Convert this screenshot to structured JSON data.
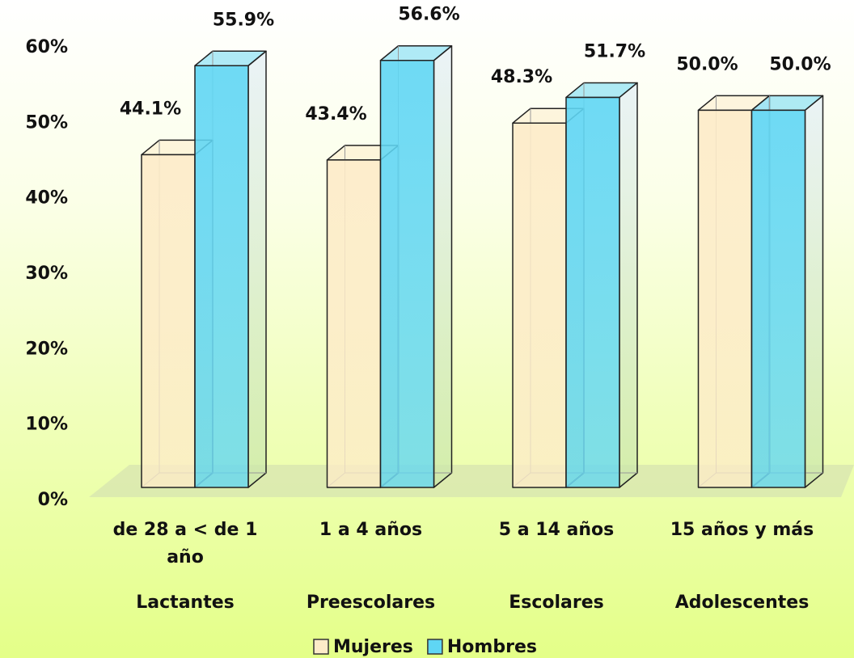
{
  "chart_data": {
    "type": "bar3d",
    "categories": [
      "de 28 a < de 1 año",
      "1 a 4 años",
      "5 a 14 años",
      "15 años y más"
    ],
    "groups": [
      "Lactantes",
      "Preescolares",
      "Escolares",
      "Adolescentes"
    ],
    "series": [
      {
        "name": "Mujeres",
        "color": "#fdebc8",
        "values": [
          44.1,
          43.4,
          48.3,
          50.0
        ],
        "value_labels": [
          "44.1%",
          "43.4%",
          "48.3%",
          "50.0%"
        ]
      },
      {
        "name": "Hombres",
        "color": "#5fd6f4",
        "values": [
          55.9,
          56.6,
          51.7,
          50.0
        ],
        "value_labels": [
          "55.9%",
          "56.6%",
          "51.7%",
          "50.0%"
        ]
      }
    ],
    "ylim": [
      0,
      60
    ],
    "yticks": [
      {
        "value": 0,
        "label": "0%"
      },
      {
        "value": 10,
        "label": "10%"
      },
      {
        "value": 20,
        "label": "20%"
      },
      {
        "value": 30,
        "label": "30%"
      },
      {
        "value": 40,
        "label": "40%"
      },
      {
        "value": 50,
        "label": "50%"
      },
      {
        "value": 60,
        "label": "60%"
      }
    ],
    "legend": "bottom"
  }
}
